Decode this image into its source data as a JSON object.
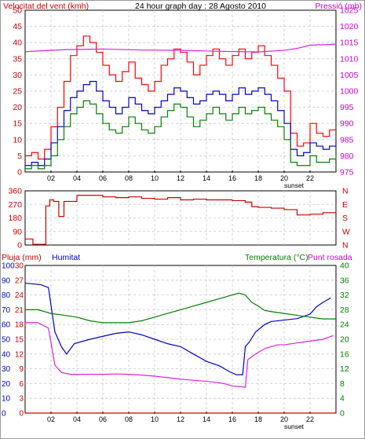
{
  "chart_data": [
    {
      "type": "line",
      "title": "24 hour graph day : 28 Agosto 2010",
      "left_axis_label": "Velocitat del vent (kmh)",
      "right_axis_label": "Pressió (mb)",
      "x_ticks": [
        "02",
        "04",
        "06",
        "08",
        "10",
        "12",
        "14",
        "16",
        "18",
        "20",
        "22"
      ],
      "x_range_hours": [
        0,
        24
      ],
      "sunset_label": "sunset",
      "ylim_left": [
        0,
        50
      ],
      "yticks_left": [
        "0",
        "5",
        "10",
        "15",
        "20",
        "25",
        "30",
        "35",
        "40",
        "45",
        "50"
      ],
      "ylim_right": [
        975,
        1025
      ],
      "yticks_right": [
        "975",
        "980",
        "985",
        "990",
        "995",
        "1000",
        "1005",
        "1010",
        "1015",
        "1020",
        "1025"
      ],
      "grid": true,
      "colors": {
        "gust": "#ff0000",
        "average": "#0000cc",
        "speed": "#008000",
        "pressure": "#dd22dd",
        "left_axis": "#cc0000",
        "right_axis": "#cc00cc"
      },
      "series": [
        {
          "key": "gust",
          "x": [
            0,
            0.5,
            1,
            1.5,
            2,
            2.5,
            3,
            3.5,
            4,
            4.5,
            5,
            5.5,
            6,
            6.5,
            7,
            7.5,
            8,
            8.5,
            9,
            9.5,
            10,
            10.5,
            11,
            11.5,
            12,
            12.5,
            13,
            13.5,
            14,
            14.5,
            15,
            15.5,
            16,
            16.5,
            17,
            17.5,
            18,
            18.5,
            19,
            19.5,
            20,
            20.5,
            21,
            21.5,
            22,
            22.5,
            23,
            23.5,
            24
          ],
          "y": [
            5,
            6,
            4,
            7,
            14,
            20,
            28,
            36,
            39,
            42,
            40,
            37,
            33,
            30,
            28,
            31,
            34,
            29,
            27,
            25,
            28,
            33,
            35,
            38,
            37,
            34,
            30,
            33,
            36,
            38,
            35,
            33,
            36,
            38,
            35,
            37,
            39,
            36,
            33,
            29,
            25,
            12,
            8,
            9,
            15,
            12,
            11,
            13,
            13
          ]
        },
        {
          "key": "average",
          "x": [
            0,
            0.5,
            1,
            1.5,
            2,
            2.5,
            3,
            3.5,
            4,
            4.5,
            5,
            5.5,
            6,
            6.5,
            7,
            7.5,
            8,
            8.5,
            9,
            9.5,
            10,
            10.5,
            11,
            11.5,
            12,
            12.5,
            13,
            13.5,
            14,
            14.5,
            15,
            15.5,
            16,
            16.5,
            17,
            17.5,
            18,
            18.5,
            19,
            19.5,
            20,
            20.5,
            21,
            21.5,
            22,
            22.5,
            23,
            23.5,
            24
          ],
          "y": [
            2,
            3,
            2,
            4,
            9,
            14,
            19,
            23,
            25,
            27,
            28,
            25,
            22,
            20,
            18,
            20,
            23,
            21,
            19,
            18,
            20,
            22,
            24,
            26,
            25,
            23,
            21,
            22,
            24,
            25,
            24,
            22,
            24,
            26,
            24,
            25,
            26,
            24,
            22,
            19,
            15,
            7,
            5,
            6,
            9,
            8,
            7,
            8,
            10
          ]
        },
        {
          "key": "speed",
          "x": [
            0,
            0.5,
            1,
            1.5,
            2,
            2.5,
            3,
            3.5,
            4,
            4.5,
            5,
            5.5,
            6,
            6.5,
            7,
            7.5,
            8,
            8.5,
            9,
            9.5,
            10,
            10.5,
            11,
            11.5,
            12,
            12.5,
            13,
            13.5,
            14,
            14.5,
            15,
            15.5,
            16,
            16.5,
            17,
            17.5,
            18,
            18.5,
            19,
            19.5,
            20,
            20.5,
            21,
            21.5,
            22,
            22.5,
            23,
            23.5,
            24
          ],
          "y": [
            1,
            2,
            1,
            2,
            5,
            10,
            14,
            18,
            20,
            22,
            21,
            18,
            15,
            13,
            12,
            14,
            17,
            15,
            13,
            12,
            14,
            17,
            19,
            21,
            20,
            17,
            14,
            16,
            18,
            20,
            18,
            16,
            18,
            20,
            18,
            19,
            20,
            18,
            16,
            14,
            10,
            3,
            2,
            2,
            5,
            3,
            3,
            4,
            5
          ]
        },
        {
          "key": "pressure",
          "x": [
            0,
            3,
            6,
            9,
            12,
            15,
            18,
            20,
            21,
            22,
            24
          ],
          "y": [
            1012.2,
            1012.8,
            1013.0,
            1012.7,
            1012.6,
            1012.3,
            1012.1,
            1012.6,
            1013.2,
            1014.2,
            1014.5
          ]
        }
      ]
    },
    {
      "type": "line",
      "ylim": [
        0,
        360
      ],
      "yticks": [
        "0",
        "90",
        "180",
        "270",
        "360"
      ],
      "right_labels": [
        "N",
        "W",
        "S",
        "E",
        "N"
      ],
      "x_range_hours": [
        0,
        24
      ],
      "x_ticks": [
        2,
        4,
        6,
        8,
        10,
        12,
        14,
        16,
        18,
        20,
        22
      ],
      "grid": true,
      "colors": {
        "direction": "#cc0000"
      },
      "series": [
        {
          "key": "direction",
          "x": [
            0,
            0.3,
            0.6,
            1.0,
            1.3,
            1.6,
            1.9,
            2.2,
            2.6,
            3,
            4,
            5,
            6,
            7,
            8,
            9,
            10,
            11,
            12,
            13,
            14,
            15,
            16,
            17,
            17.5,
            18,
            19,
            20,
            21,
            22,
            23,
            24
          ],
          "y": [
            40,
            40,
            5,
            5,
            5,
            260,
            300,
            290,
            190,
            290,
            330,
            330,
            320,
            315,
            320,
            310,
            305,
            315,
            300,
            305,
            300,
            300,
            295,
            285,
            255,
            250,
            245,
            235,
            200,
            205,
            215,
            225
          ]
        }
      ]
    },
    {
      "type": "line",
      "title_left_1": "Pluja (mm)",
      "title_left_2": "Humitat",
      "title_right_1": "Temperatura (°C)",
      "title_right_2": "Punt rosada",
      "ylim_rain": [
        0,
        30
      ],
      "ylim_humidity": [
        0,
        100
      ],
      "ylim_temperature": [
        0,
        40
      ],
      "yticks_rain": [
        "0",
        "3",
        "6",
        "9",
        "12",
        "15",
        "18",
        "21",
        "24",
        "27",
        "30"
      ],
      "yticks_humidity": [
        "0",
        "10",
        "20",
        "30",
        "40",
        "50",
        "60",
        "70",
        "80",
        "90",
        "100"
      ],
      "yticks_temperature": [
        "0",
        "4",
        "8",
        "12",
        "16",
        "20",
        "24",
        "28",
        "32",
        "36",
        "40"
      ],
      "x_ticks": [
        "02",
        "04",
        "06",
        "08",
        "10",
        "12",
        "14",
        "16",
        "18",
        "20",
        "22"
      ],
      "x_range_hours": [
        0,
        24
      ],
      "sunset_label": "sunset",
      "grid": true,
      "colors": {
        "rain": "#cc0000",
        "humidity": "#0000cc",
        "temperature": "#008000",
        "dewpoint": "#dd22dd",
        "left_axis": "#cc0000",
        "humidity_axis": "#0000cc",
        "right_axis": "#008000"
      },
      "series": [
        {
          "key": "humidity",
          "x": [
            0,
            1.2,
            1.8,
            2.3,
            2.8,
            3.2,
            3.8,
            5,
            6,
            7,
            8,
            9,
            10,
            11,
            12,
            13,
            14,
            15,
            15.8,
            16.3,
            16.8,
            17,
            17.3,
            17.8,
            18.5,
            19,
            20,
            21,
            22,
            22.5,
            23,
            23.6
          ],
          "y": [
            88,
            87,
            85,
            55,
            45,
            40,
            47,
            50,
            52,
            54,
            55,
            53,
            50,
            47,
            45,
            40,
            35,
            32,
            28,
            26,
            26,
            45,
            48,
            55,
            60,
            62,
            63,
            64,
            67,
            72,
            75,
            78
          ]
        },
        {
          "key": "temperature",
          "x": [
            0,
            1,
            2,
            3,
            4,
            5,
            6,
            7,
            8,
            9,
            10,
            11,
            12,
            13,
            14,
            15,
            16,
            16.5,
            17,
            17.5,
            18,
            18.5,
            19,
            20,
            21,
            22,
            23,
            24
          ],
          "y": [
            28,
            28,
            27,
            26.5,
            26,
            25,
            24.5,
            24.5,
            24.5,
            25,
            26,
            27,
            28,
            29,
            30,
            31,
            32,
            32.5,
            32,
            30,
            29,
            27.8,
            27.5,
            27,
            26.5,
            26,
            25.5,
            25.5
          ]
        },
        {
          "key": "dewpoint",
          "x": [
            0,
            1,
            1.8,
            2.3,
            2.8,
            3.5,
            4.5,
            6,
            7,
            8,
            9,
            10,
            11,
            12,
            13,
            14,
            15,
            15.6,
            16,
            16.5,
            17,
            17.2,
            17.8,
            18.5,
            19,
            19.5,
            20,
            21,
            22,
            23,
            23.8
          ],
          "y": [
            24.5,
            24.5,
            23,
            13,
            11,
            10.5,
            10.5,
            10.5,
            10.6,
            10.5,
            10.3,
            10,
            9.6,
            9.2,
            8.9,
            8.6,
            8.2,
            7.8,
            7.3,
            7.2,
            7,
            14.5,
            16,
            17.5,
            18,
            18.5,
            18.5,
            19,
            19.5,
            20,
            21
          ]
        },
        {
          "key": "rain",
          "x": [
            0,
            24
          ],
          "y": [
            0,
            0
          ]
        }
      ]
    }
  ]
}
